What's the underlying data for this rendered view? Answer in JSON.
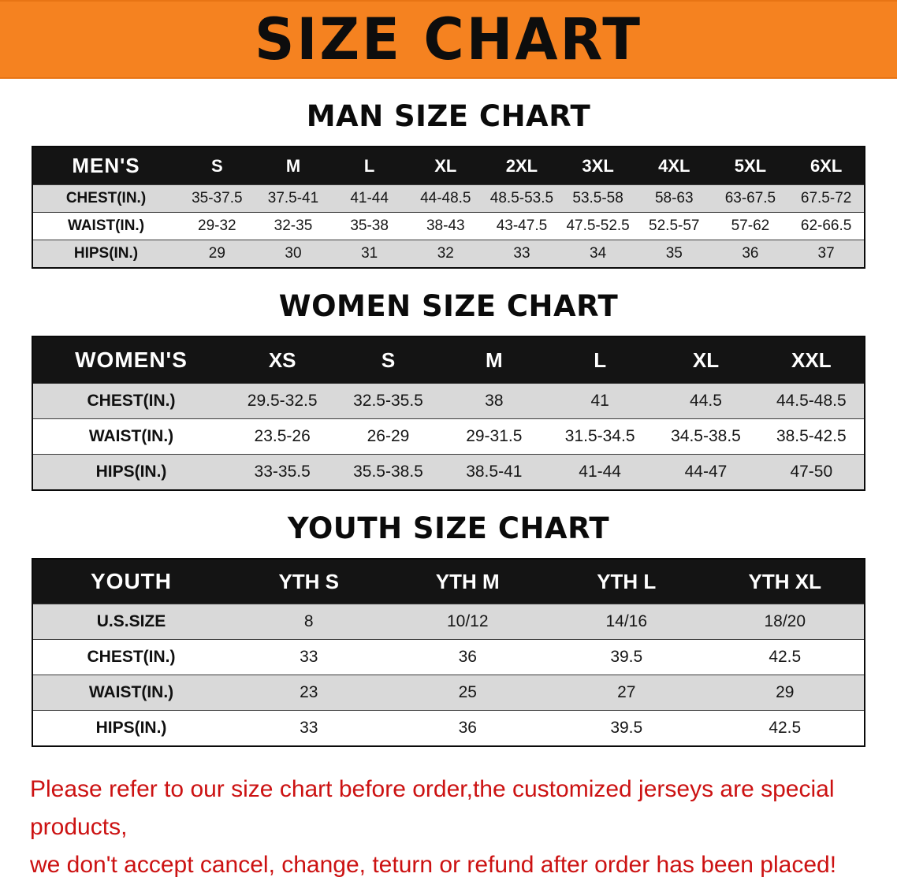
{
  "banner": {
    "title": "SIZE CHART"
  },
  "colors": {
    "banner_bg": "#f58220",
    "table_header_bg": "#141414",
    "row_alt_gray": "#d9d9d9",
    "disclaimer_red": "#cc1212"
  },
  "chart_data": [
    {
      "type": "table",
      "title": "MAN SIZE CHART",
      "header": [
        "MEN'S",
        "S",
        "M",
        "L",
        "XL",
        "2XL",
        "3XL",
        "4XL",
        "5XL",
        "6XL"
      ],
      "rows": [
        [
          "CHEST(IN.)",
          "35-37.5",
          "37.5-41",
          "41-44",
          "44-48.5",
          "48.5-53.5",
          "53.5-58",
          "58-63",
          "63-67.5",
          "67.5-72"
        ],
        [
          "WAIST(IN.)",
          "29-32",
          "32-35",
          "35-38",
          "38-43",
          "43-47.5",
          "47.5-52.5",
          "52.5-57",
          "57-62",
          "62-66.5"
        ],
        [
          "HIPS(IN.)",
          "29",
          "30",
          "31",
          "32",
          "33",
          "34",
          "35",
          "36",
          "37"
        ]
      ]
    },
    {
      "type": "table",
      "title": "WOMEN SIZE CHART",
      "header": [
        "WOMEN'S",
        "XS",
        "S",
        "M",
        "L",
        "XL",
        "XXL"
      ],
      "rows": [
        [
          "CHEST(IN.)",
          "29.5-32.5",
          "32.5-35.5",
          "38",
          "41",
          "44.5",
          "44.5-48.5"
        ],
        [
          "WAIST(IN.)",
          "23.5-26",
          "26-29",
          "29-31.5",
          "31.5-34.5",
          "34.5-38.5",
          "38.5-42.5"
        ],
        [
          "HIPS(IN.)",
          "33-35.5",
          "35.5-38.5",
          "38.5-41",
          "41-44",
          "44-47",
          "47-50"
        ]
      ]
    },
    {
      "type": "table",
      "title": "YOUTH SIZE CHART",
      "header": [
        "YOUTH",
        "YTH S",
        "YTH M",
        "YTH L",
        "YTH XL"
      ],
      "rows": [
        [
          "U.S.SIZE",
          "8",
          "10/12",
          "14/16",
          "18/20"
        ],
        [
          "CHEST(IN.)",
          "33",
          "36",
          "39.5",
          "42.5"
        ],
        [
          "WAIST(IN.)",
          "23",
          "25",
          "27",
          "29"
        ],
        [
          "HIPS(IN.)",
          "33",
          "36",
          "39.5",
          "42.5"
        ]
      ]
    }
  ],
  "disclaimer": {
    "line1": "Please refer to our size chart before order,the customized jerseys are special products,",
    "line2": "we don't accept cancel, change, teturn or refund after order has been placed!"
  }
}
